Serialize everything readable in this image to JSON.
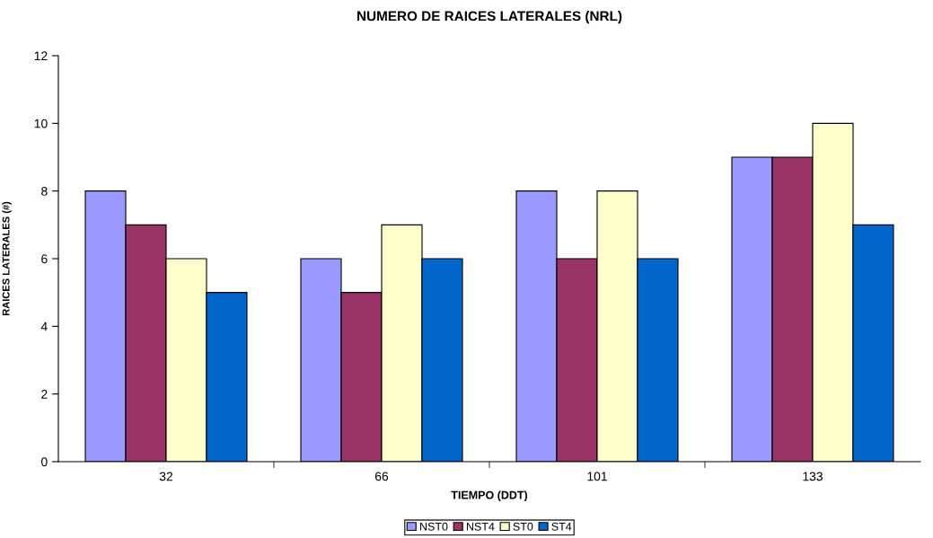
{
  "chart_data": {
    "type": "bar",
    "title": "NUMERO DE RAICES LATERALES (NRL)",
    "xlabel": "TIEMPO (DDT)",
    "ylabel": "RAICES LATERALES (#)",
    "categories": [
      "32",
      "66",
      "101",
      "133"
    ],
    "series": [
      {
        "name": "NST0",
        "color": "#9999ff",
        "values": [
          8,
          6,
          8,
          9
        ]
      },
      {
        "name": "NST4",
        "color": "#993366",
        "values": [
          7,
          5,
          6,
          9
        ]
      },
      {
        "name": "ST0",
        "color": "#ffffcc",
        "values": [
          6,
          7,
          8,
          10
        ]
      },
      {
        "name": "ST4",
        "color": "#0066cc",
        "values": [
          5,
          6,
          6,
          7
        ]
      }
    ],
    "ylim": [
      0,
      12
    ],
    "yticks": [
      0,
      2,
      4,
      6,
      8,
      10,
      12
    ],
    "grid": false,
    "legend": "bottom"
  }
}
